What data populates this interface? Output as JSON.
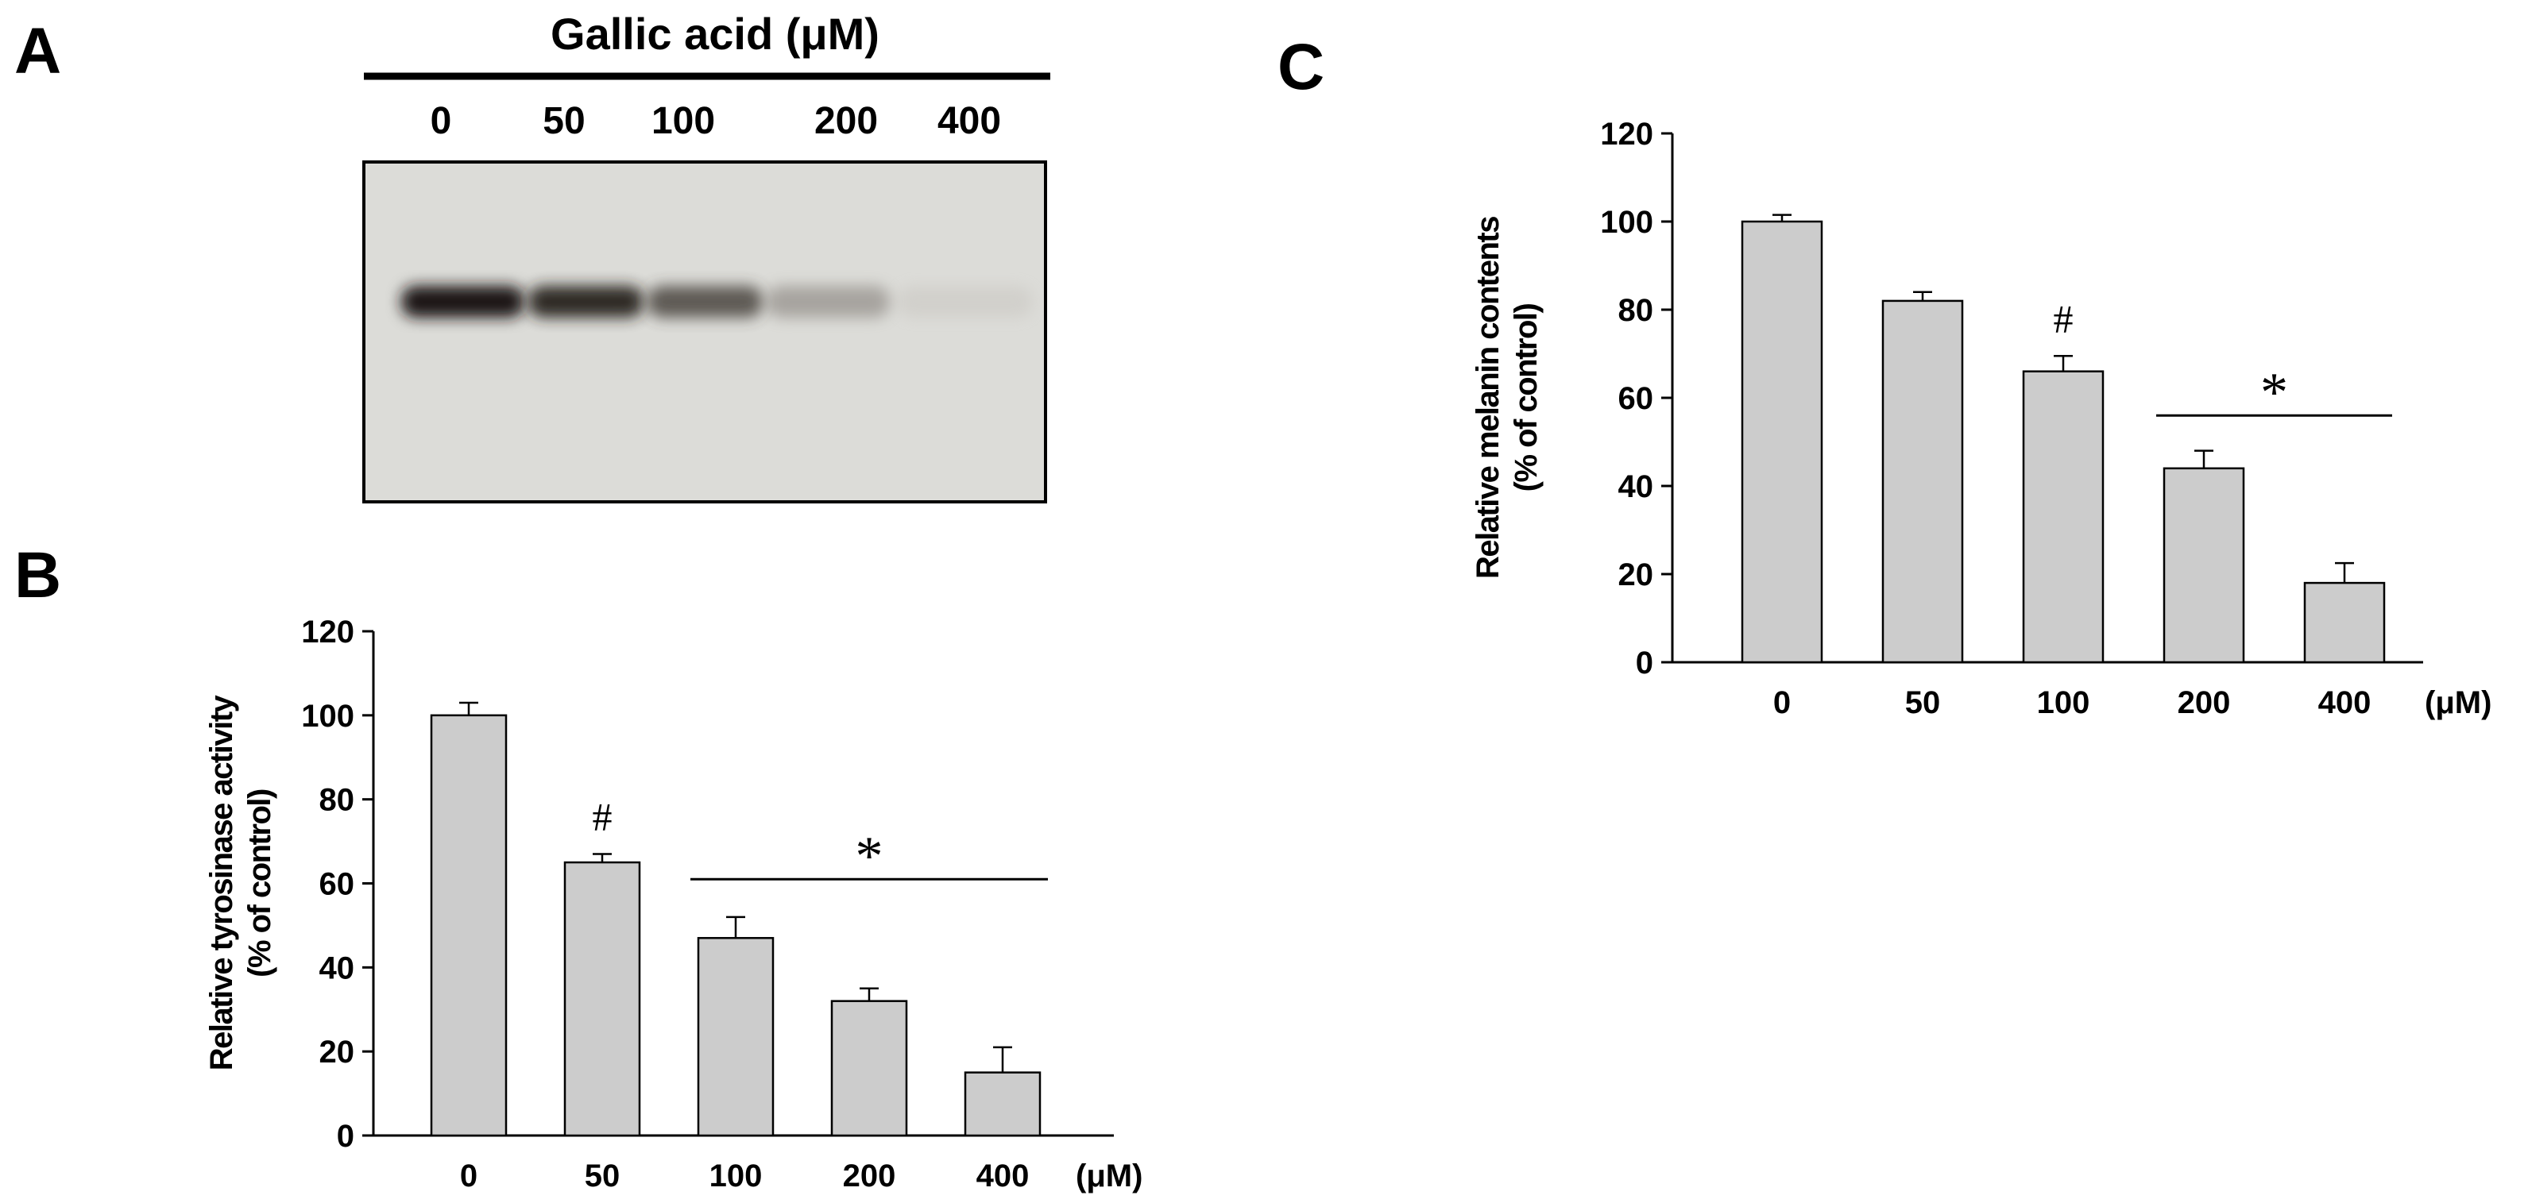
{
  "panels": {
    "a": {
      "letter": "A",
      "title": "Gallic acid (μM)",
      "lanes": [
        "0",
        "50",
        "100",
        "200",
        "400"
      ],
      "band_intensity": [
        1.0,
        0.95,
        0.8,
        0.5,
        0.12
      ]
    },
    "b": {
      "letter": "B"
    },
    "c": {
      "letter": "C"
    }
  },
  "chart_data": [
    {
      "panel": "B",
      "type": "bar",
      "categories": [
        "0",
        "50",
        "100",
        "200",
        "400"
      ],
      "x_unit": "(μM)",
      "values": [
        100,
        65,
        47,
        32,
        15
      ],
      "errors": [
        3,
        2,
        5,
        3,
        6
      ],
      "ylabel_line1": "Relative tyrosinase activity",
      "ylabel_line2": "(% of control)",
      "ylim": [
        0,
        120
      ],
      "yticks": [
        0,
        20,
        40,
        60,
        80,
        100,
        120
      ],
      "bar_color": "#cccccc",
      "annotations": [
        {
          "text": "#",
          "category": "50"
        },
        {
          "text": "*",
          "from": "100",
          "to": "400",
          "y": 61
        }
      ]
    },
    {
      "panel": "C",
      "type": "bar",
      "categories": [
        "0",
        "50",
        "100",
        "200",
        "400"
      ],
      "x_unit": "(μM)",
      "values": [
        100,
        82,
        66,
        44,
        18
      ],
      "errors": [
        1.5,
        2,
        3.5,
        4,
        4.5
      ],
      "ylabel_line1": "Relative melanin contents",
      "ylabel_line2": "(% of control)",
      "ylim": [
        0,
        120
      ],
      "yticks": [
        0,
        20,
        40,
        60,
        80,
        100,
        120
      ],
      "bar_color": "#cccccc",
      "annotations": [
        {
          "text": "#",
          "category": "100"
        },
        {
          "text": "*",
          "from": "200",
          "to": "400",
          "y": 56
        }
      ]
    }
  ]
}
